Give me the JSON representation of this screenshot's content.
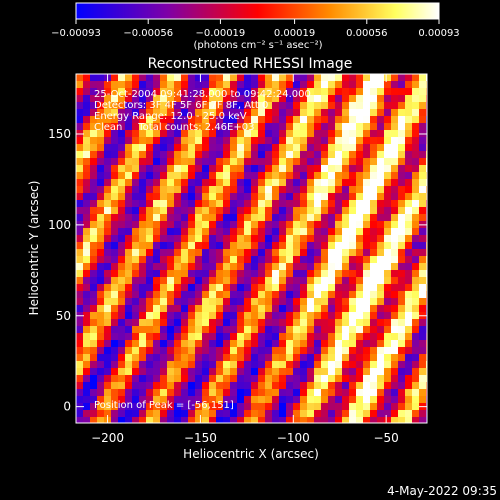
{
  "chart_data": {
    "type": "heatmap",
    "title": "Reconstructed RHESSI Image",
    "xlabel": "Heliocentric X (arcsec)",
    "ylabel": "Heliocentric Y (arcsec)",
    "xlim": [
      -217,
      -28
    ],
    "ylim": [
      -9,
      183
    ],
    "x_ticks": [
      -200,
      -150,
      -100,
      -50
    ],
    "x_tick_labels": [
      "−200",
      "−150",
      "−100",
      "−50"
    ],
    "y_ticks": [
      0,
      50,
      100,
      150
    ],
    "y_tick_labels": [
      "0",
      "50",
      "100",
      "150"
    ],
    "colorbar": {
      "range": [
        -0.00093,
        0.00093
      ],
      "ticks": [
        -0.00093,
        -0.00056,
        -0.00019,
        0.00019,
        0.00056,
        0.00093
      ],
      "tick_labels": [
        "−0.00093",
        "−0.00056",
        "−0.00019",
        "0.00019",
        "0.00056",
        "0.00093"
      ],
      "unit": "(photons cm⁻² s⁻¹ asec⁻²)",
      "colors": [
        "#0000ff",
        "#7d00a8",
        "#ff0000",
        "#ff8c00",
        "#ffff60",
        "#ffffff"
      ]
    },
    "info_lines": [
      "25-Oct-2004 09:41:28.000 to 09:42:24.000",
      "Detectors: 3F 4F 5F 6F 7F 8F, Att 0",
      "Energy Range: 12.0 - 25.0 keV",
      "Clean     Total counts: 2.46E+03"
    ],
    "peak_text": "Position of Peak = [-56,151]",
    "peak": [
      -56,
      151
    ],
    "timestamp": "4-May-2022 09:35"
  }
}
